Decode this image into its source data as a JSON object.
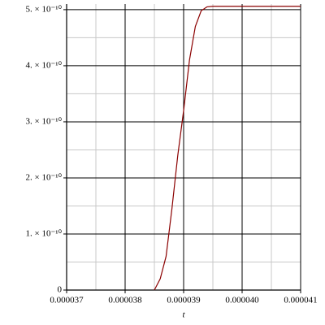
{
  "chart_data": {
    "type": "line",
    "x_label": "t",
    "x": [
      3.85e-05,
      3.86e-05,
      3.87e-05,
      3.88e-05,
      3.89e-05,
      3.9e-05,
      3.91e-05,
      3.92e-05,
      3.93e-05,
      3.94e-05,
      3.95e-05,
      4.1e-05
    ],
    "series": [
      {
        "color": "#8b0000",
        "values": [
          0,
          2e-11,
          6e-11,
          1.45e-10,
          2.4e-10,
          3.2e-10,
          4.1e-10,
          4.7e-10,
          4.98e-10,
          5.05e-10,
          5.06e-10,
          5.06e-10
        ]
      }
    ],
    "xlim": [
      3.7e-05,
      4.1e-05
    ],
    "xticks": [
      3.7e-05,
      3.8e-05,
      3.9e-05,
      {
        "value": 4e-05,
        "label": "0.000040"
      },
      4.1e-05
    ],
    "ylim": [
      0,
      5.1e-10
    ],
    "yticks": [
      0,
      {
        "value": 1e-10,
        "label": "1. × 10⁻¹⁰"
      },
      {
        "value": 2e-10,
        "label": "2. × 10⁻¹⁰"
      },
      {
        "value": 3e-10,
        "label": "3. × 10⁻¹⁰"
      },
      {
        "value": 4e-10,
        "label": "4. × 10⁻¹⁰"
      },
      {
        "value": 5e-10,
        "label": "5. × 10⁻¹⁰"
      }
    ],
    "grid": true,
    "minor_grid": true
  }
}
